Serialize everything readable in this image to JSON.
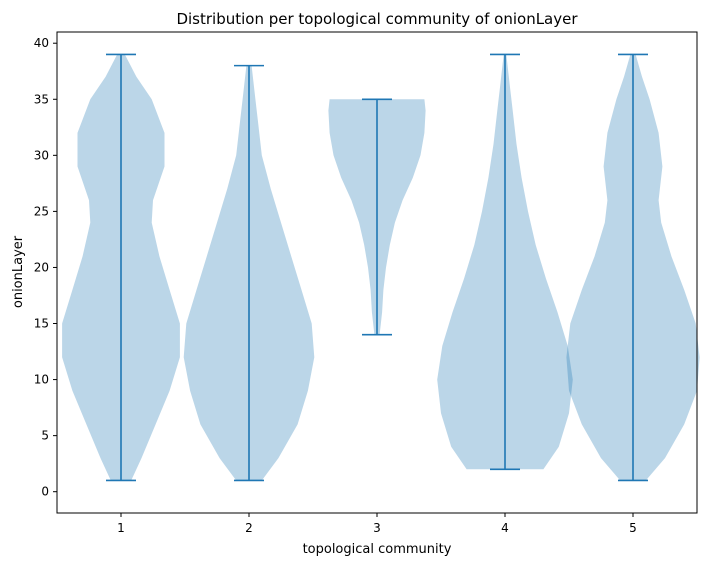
{
  "chart_data": {
    "type": "violin",
    "title": "Distribution per topological community of onionLayer",
    "xlabel": "topological community",
    "ylabel": "onionLayer",
    "ylim": [
      -1.9,
      41.0
    ],
    "yticks": [
      0,
      5,
      10,
      15,
      20,
      25,
      30,
      35,
      40
    ],
    "categories": [
      "1",
      "2",
      "3",
      "4",
      "5"
    ],
    "grid": false,
    "legend": "none",
    "colors": {
      "body": "#1f77b4",
      "body_alpha": 0.3,
      "lines": "#1f77b4"
    },
    "violins": [
      {
        "category": "1",
        "min": 1,
        "max": 39,
        "profile": [
          [
            1,
            0.08
          ],
          [
            3,
            0.16
          ],
          [
            6,
            0.27
          ],
          [
            9,
            0.38
          ],
          [
            12,
            0.46
          ],
          [
            15,
            0.46
          ],
          [
            18,
            0.38
          ],
          [
            21,
            0.3
          ],
          [
            24,
            0.24
          ],
          [
            26,
            0.25
          ],
          [
            29,
            0.34
          ],
          [
            32,
            0.34
          ],
          [
            35,
            0.24
          ],
          [
            37,
            0.12
          ],
          [
            39,
            0.03
          ]
        ]
      },
      {
        "category": "2",
        "min": 1,
        "max": 38,
        "profile": [
          [
            1,
            0.1
          ],
          [
            3,
            0.23
          ],
          [
            6,
            0.38
          ],
          [
            9,
            0.46
          ],
          [
            12,
            0.51
          ],
          [
            15,
            0.49
          ],
          [
            18,
            0.41
          ],
          [
            21,
            0.33
          ],
          [
            24,
            0.25
          ],
          [
            27,
            0.17
          ],
          [
            30,
            0.1
          ],
          [
            33,
            0.07
          ],
          [
            35,
            0.05
          ],
          [
            38,
            0.02
          ]
        ]
      },
      {
        "category": "3",
        "min": 14,
        "max": 35,
        "profile": [
          [
            14,
            0.02
          ],
          [
            16,
            0.04
          ],
          [
            18,
            0.05
          ],
          [
            20,
            0.07
          ],
          [
            22,
            0.1
          ],
          [
            24,
            0.14
          ],
          [
            26,
            0.2
          ],
          [
            28,
            0.28
          ],
          [
            30,
            0.34
          ],
          [
            32,
            0.37
          ],
          [
            34,
            0.38
          ],
          [
            35,
            0.37
          ]
        ]
      },
      {
        "category": "4",
        "min": 2,
        "max": 39,
        "profile": [
          [
            2,
            0.3
          ],
          [
            4,
            0.42
          ],
          [
            7,
            0.5
          ],
          [
            10,
            0.53
          ],
          [
            13,
            0.49
          ],
          [
            16,
            0.41
          ],
          [
            19,
            0.32
          ],
          [
            22,
            0.24
          ],
          [
            25,
            0.18
          ],
          [
            28,
            0.13
          ],
          [
            31,
            0.09
          ],
          [
            34,
            0.06
          ],
          [
            36,
            0.04
          ],
          [
            39,
            0.01
          ]
        ]
      },
      {
        "category": "5",
        "min": 1,
        "max": 39,
        "profile": [
          [
            1,
            0.1
          ],
          [
            3,
            0.25
          ],
          [
            6,
            0.4
          ],
          [
            9,
            0.5
          ],
          [
            12,
            0.52
          ],
          [
            15,
            0.49
          ],
          [
            18,
            0.4
          ],
          [
            21,
            0.3
          ],
          [
            24,
            0.22
          ],
          [
            26,
            0.2
          ],
          [
            29,
            0.23
          ],
          [
            32,
            0.2
          ],
          [
            35,
            0.13
          ],
          [
            37,
            0.07
          ],
          [
            39,
            0.02
          ]
        ]
      }
    ]
  }
}
